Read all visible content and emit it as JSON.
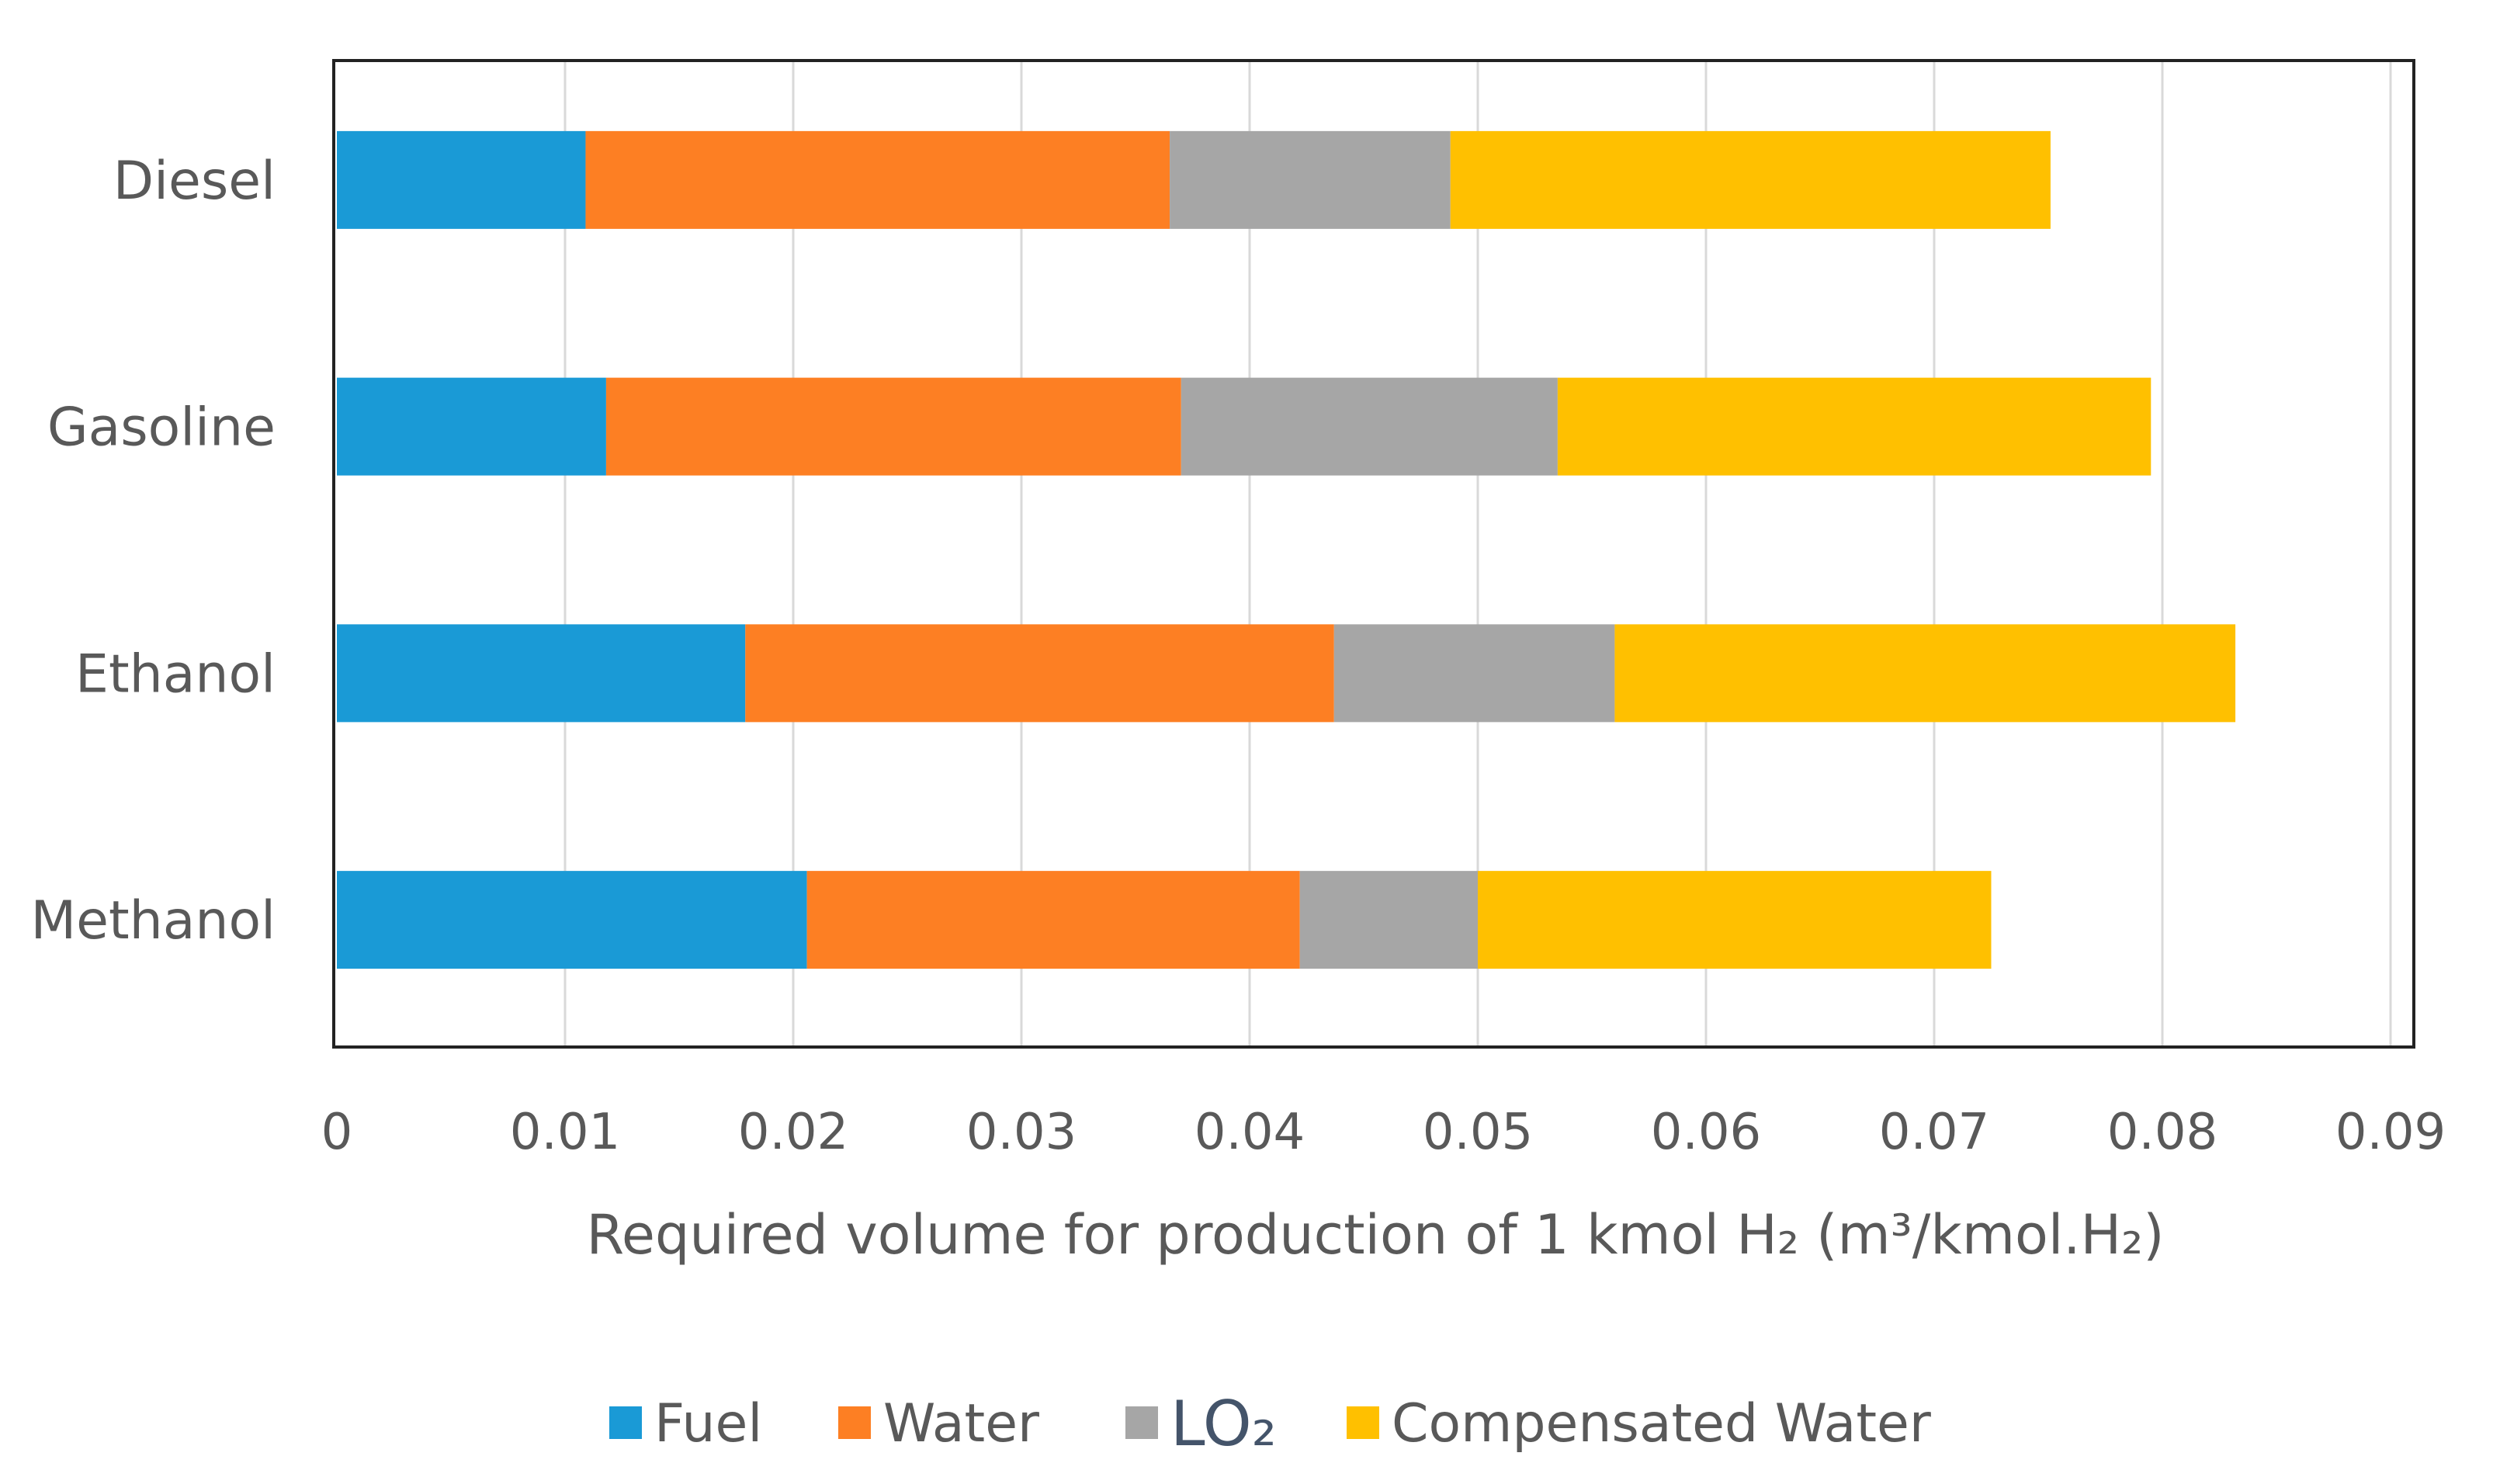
{
  "chart_data": {
    "type": "bar",
    "orientation": "horizontal",
    "stacked": true,
    "categories": [
      "Diesel",
      "Gasoline",
      "Ethanol",
      "Methanol"
    ],
    "series": [
      {
        "name": "Fuel",
        "color": "#1a9ad6",
        "values": [
          0.0109,
          0.0118,
          0.0179,
          0.0206
        ]
      },
      {
        "name": "Water",
        "color": "#fd7f23",
        "values": [
          0.0256,
          0.0252,
          0.0258,
          0.0216
        ]
      },
      {
        "name": "LO₂",
        "color": "#a6a6a6",
        "values": [
          0.0123,
          0.0165,
          0.0123,
          0.0078
        ]
      },
      {
        "name": "Compensated Water",
        "color": "#ffc000",
        "values": [
          0.0263,
          0.026,
          0.0272,
          0.0225
        ]
      }
    ],
    "xlim": [
      0,
      0.09
    ],
    "xticks": [
      "0",
      "0.01",
      "0.02",
      "0.03",
      "0.04",
      "0.05",
      "0.06",
      "0.07",
      "0.08",
      "0.09"
    ],
    "xlabel": "Required volume for production of 1 kmol H₂ (m³/kmol.H₂)",
    "ylabel": "",
    "title": "",
    "grid": "vertical",
    "legend_position": "bottom"
  }
}
